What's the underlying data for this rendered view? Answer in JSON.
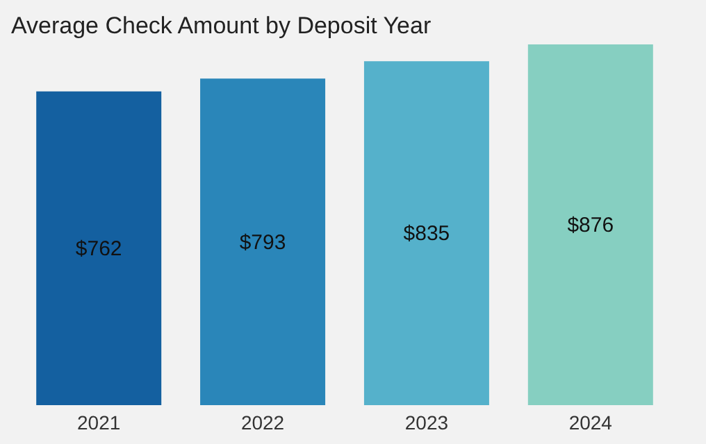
{
  "chart_data": {
    "type": "bar",
    "title": "Average Check Amount by Deposit Year",
    "categories": [
      "2021",
      "2022",
      "2023",
      "2024"
    ],
    "values": [
      762,
      793,
      835,
      876
    ],
    "colors": [
      "#1460a0",
      "#2a86b9",
      "#55b1cb",
      "#86cfc1"
    ],
    "value_labels": [
      "$762",
      "$793",
      "$835",
      "$876"
    ],
    "tick_labels": "x",
    "grid": false
  }
}
